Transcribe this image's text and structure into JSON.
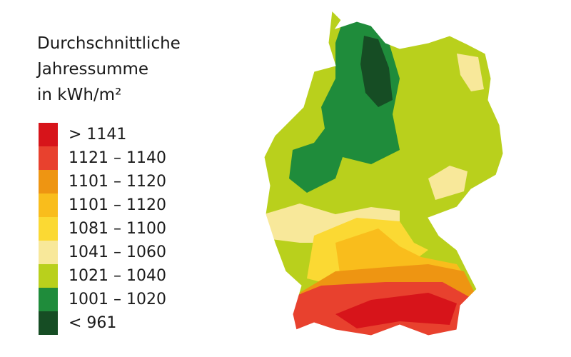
{
  "legend": {
    "title": [
      "Durchschnittliche",
      "Jahressumme",
      "in kWh/m²"
    ],
    "items": [
      {
        "label": "> 1141",
        "color": "#d7141a"
      },
      {
        "label": "1121 – 1140",
        "color": "#e8412e"
      },
      {
        "label": "1101 – 1120",
        "color": "#ee9512"
      },
      {
        "label": "1101 – 1120",
        "color": "#f9bd1c"
      },
      {
        "label": "1081 – 1100",
        "color": "#fbd933"
      },
      {
        "label": "1041 – 1060",
        "color": "#f8e89a"
      },
      {
        "label": "1021 – 1040",
        "color": "#b9d01c"
      },
      {
        "label": "1001 – 1020",
        "color": "#1f8c3b"
      },
      {
        "label": "< 961",
        "color": "#164d24"
      }
    ]
  }
}
